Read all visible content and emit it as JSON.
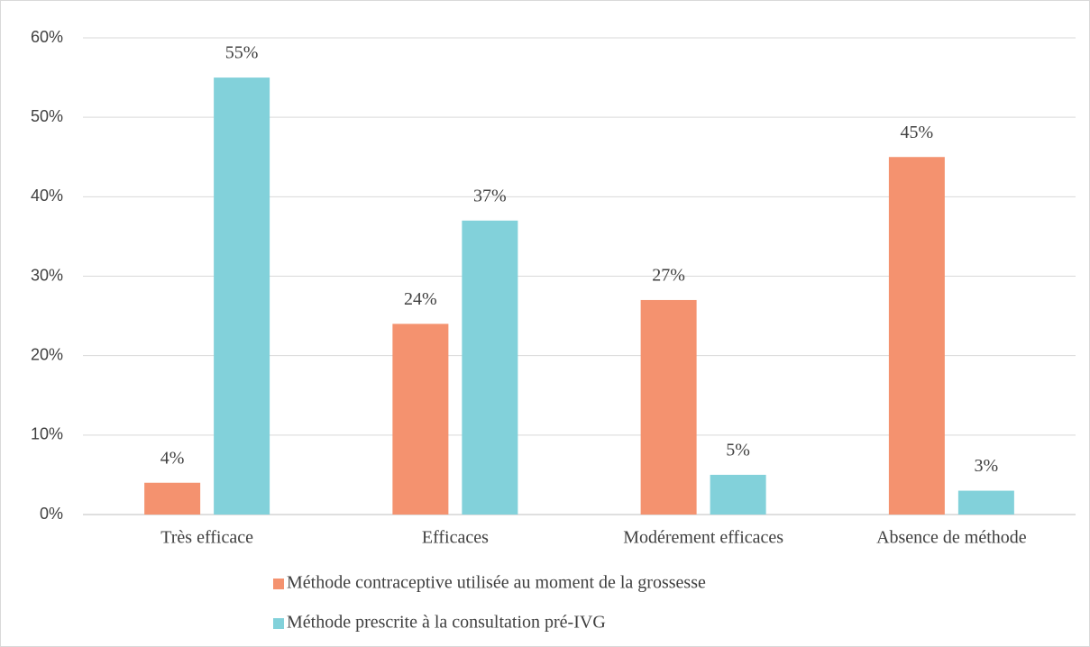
{
  "chart_data": {
    "type": "bar",
    "categories": [
      "Très efficace",
      "Efficaces",
      "Modérement efficaces",
      "Absence de méthode"
    ],
    "series": [
      {
        "name": "Méthode contraceptive utilisée au moment de la grossesse",
        "color": "#f4926f",
        "values": [
          4,
          24,
          27,
          45
        ],
        "value_labels": [
          "4%",
          "24%",
          "27%",
          "45%"
        ]
      },
      {
        "name": "Méthode prescrite à la consultation pré-IVG",
        "color": "#82d1da",
        "values": [
          55,
          37,
          5,
          3
        ],
        "value_labels": [
          "55%",
          "37%",
          "5%",
          "3%"
        ]
      }
    ],
    "ylim": [
      0,
      60
    ],
    "yticks": [
      {
        "value": 0,
        "label": "0%"
      },
      {
        "value": 10,
        "label": "10%"
      },
      {
        "value": 20,
        "label": "20%"
      },
      {
        "value": 30,
        "label": "30%"
      },
      {
        "value": 40,
        "label": "40%"
      },
      {
        "value": 50,
        "label": "50%"
      },
      {
        "value": 60,
        "label": "60%"
      }
    ],
    "grid": true
  }
}
